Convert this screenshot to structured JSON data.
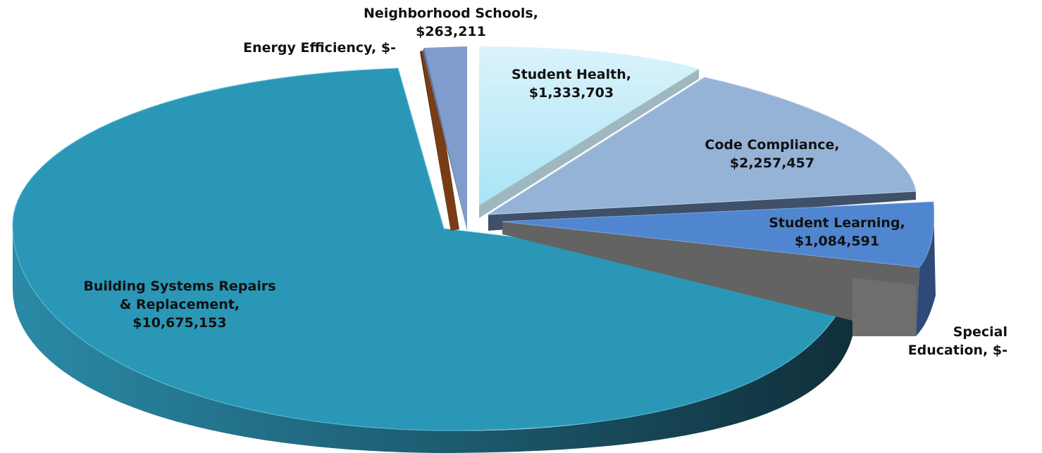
{
  "chart_data": {
    "type": "pie",
    "title": "",
    "style": "3d-exploded",
    "slices": [
      {
        "name": "Building Systems Repairs & Replacement",
        "value": 10675153,
        "label_lines": [
          "Building Systems Repairs",
          "& Replacement,",
          "$10,675,153"
        ],
        "top_color": "#2b97b7",
        "side_color": "#1f6b84"
      },
      {
        "name": "Energy Efficiency",
        "value": 0,
        "label_lines": [
          "Energy Efficiency,  $-"
        ],
        "top_color": "#7a3c14",
        "side_color": "#5a2a0c"
      },
      {
        "name": "Neighborhood Schools",
        "value": 263211,
        "label_lines": [
          "Neighborhood Schools,",
          "$263,211"
        ],
        "top_color": "#7f9ccc",
        "side_color": "#5d7aa6"
      },
      {
        "name": "Student Health",
        "value": 1333703,
        "label_lines": [
          "Student Health,",
          "$1,333,703"
        ],
        "top_color": "#c9eef9",
        "side_color": "#9fb8bf"
      },
      {
        "name": "Code Compliance",
        "value": 2257457,
        "label_lines": [
          "Code Compliance,",
          "$2,257,457"
        ],
        "top_color": "#95b3d7",
        "side_color": "#6f8fb6"
      },
      {
        "name": "Student Learning",
        "value": 1084591,
        "label_lines": [
          "Student Learning,",
          "$1,084,591"
        ],
        "top_color": "#4f86cf",
        "side_color": "#2d4a78"
      },
      {
        "name": "Special Education",
        "value": 0,
        "label_lines": [
          "Special",
          "Education,  $-"
        ],
        "top_color": "#6e6e6e",
        "side_color": "#555555"
      }
    ]
  }
}
